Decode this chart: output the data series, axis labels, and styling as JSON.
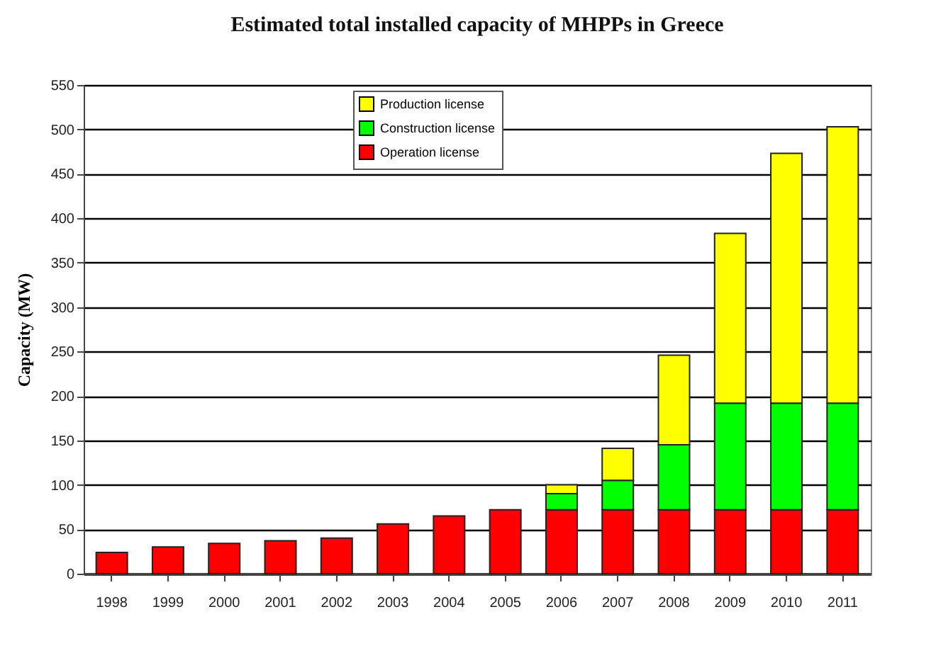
{
  "chart_data": {
    "type": "bar",
    "title": "Estimated total installed capacity of MHPPs in Greece",
    "ylabel": "Capacity (MW)",
    "categories": [
      "1998",
      "1999",
      "2000",
      "2001",
      "2002",
      "2003",
      "2004",
      "2005",
      "2006",
      "2007",
      "2008",
      "2009",
      "2010",
      "2011"
    ],
    "stacked": true,
    "series": [
      {
        "name": "Operation license",
        "color": "#ff0000",
        "values": [
          24,
          30,
          34,
          37,
          40,
          56,
          65,
          72,
          72,
          72,
          72,
          72,
          72,
          72
        ]
      },
      {
        "name": "Construction license",
        "color": "#00ff00",
        "values": [
          null,
          null,
          null,
          null,
          null,
          null,
          null,
          null,
          18,
          33,
          73,
          120,
          120,
          120
        ]
      },
      {
        "name": "Production license",
        "color": "#ffff00",
        "values": [
          null,
          null,
          null,
          null,
          null,
          null,
          null,
          null,
          10,
          36,
          101,
          191,
          281,
          311
        ]
      }
    ],
    "ylim": [
      0,
      550
    ],
    "yticks": [
      0,
      50,
      100,
      150,
      200,
      250,
      300,
      350,
      400,
      450,
      500,
      550
    ],
    "grid": "y",
    "legend": "top"
  }
}
